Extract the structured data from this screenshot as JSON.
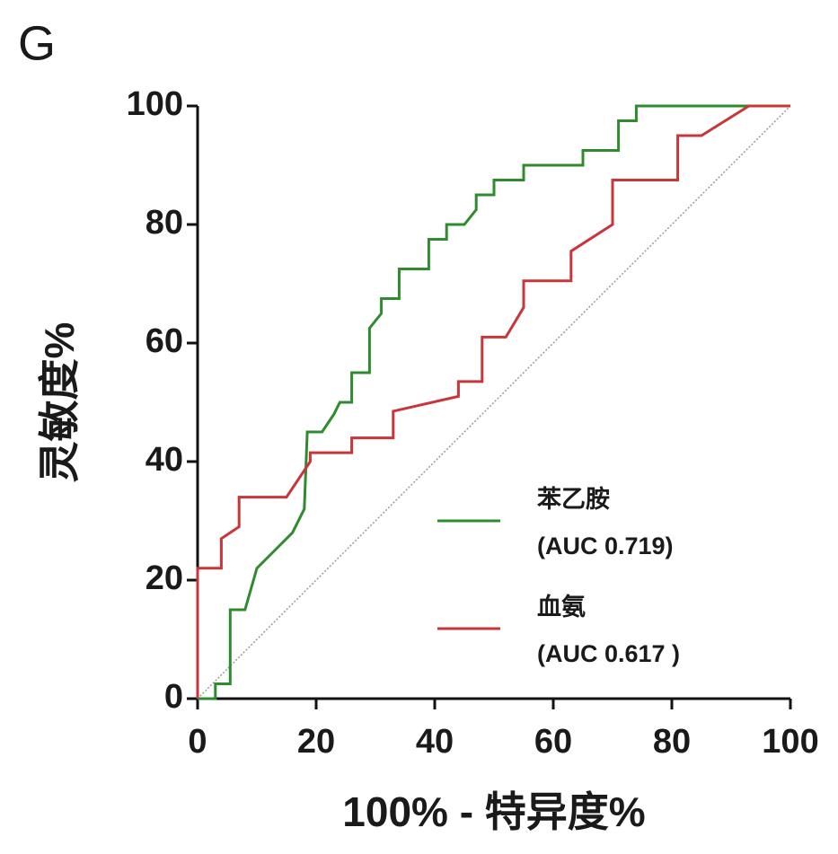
{
  "chart_data": {
    "type": "line",
    "panel_label": "G",
    "x_label": "100% - 特异度%",
    "y_label": "灵敏度%",
    "xlim": [
      0,
      100
    ],
    "ylim": [
      0,
      100
    ],
    "xticks": [
      0,
      20,
      40,
      60,
      80,
      100
    ],
    "yticks": [
      0,
      20,
      40,
      60,
      80,
      100
    ],
    "grid": false,
    "legend": "lower right",
    "series": [
      {
        "name": "苯乙胺",
        "auc_label": "(AUC 0.719)",
        "color": "#2e8b2e",
        "x": [
          0,
          3,
          3,
          5.5,
          5.5,
          8,
          10,
          13,
          16,
          18,
          18.5,
          21,
          23,
          24,
          26,
          26,
          29,
          29,
          31,
          31,
          34,
          34,
          39,
          39,
          42,
          42,
          45,
          47,
          47,
          50,
          50,
          55,
          55,
          65,
          65,
          71,
          71,
          74,
          74,
          100
        ],
        "values": [
          0,
          0,
          2.5,
          2.5,
          15,
          15,
          22,
          25,
          28,
          32,
          45,
          45,
          48,
          50,
          50,
          55,
          55,
          62.5,
          65,
          67.5,
          67.5,
          72.5,
          72.5,
          77.5,
          77.5,
          80,
          80,
          82.5,
          85,
          85,
          87.5,
          87.5,
          90,
          90,
          92.5,
          92.5,
          97.5,
          97.5,
          100,
          100
        ]
      },
      {
        "name": "血氨",
        "auc_label": "(AUC 0.617 )",
        "color": "#c8363a",
        "x": [
          0,
          0,
          4,
          4,
          7,
          7,
          15,
          19,
          19,
          26,
          26,
          33,
          33,
          44,
          44,
          48,
          48,
          52,
          55,
          55,
          63,
          63,
          70,
          70,
          81,
          81,
          85,
          93,
          100
        ],
        "values": [
          0,
          22,
          22,
          27,
          29,
          34,
          34,
          40,
          41.5,
          41.5,
          44,
          44,
          48.5,
          51,
          53.5,
          53.5,
          61,
          61,
          66,
          70.5,
          70.5,
          75.5,
          80,
          87.5,
          87.5,
          95,
          95,
          100,
          100
        ]
      }
    ]
  }
}
